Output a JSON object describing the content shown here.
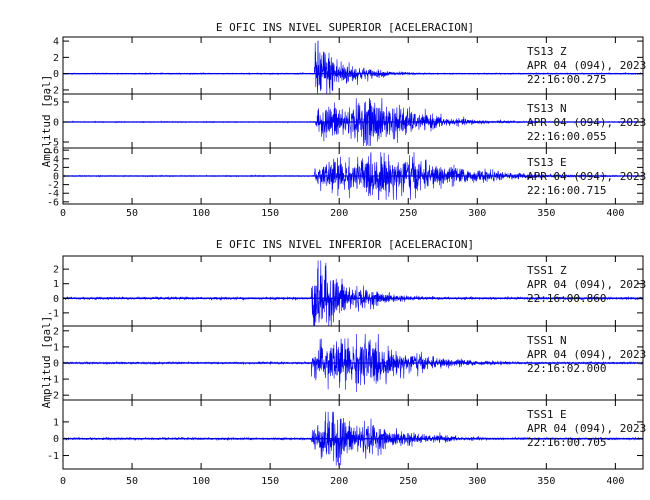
{
  "chart_data": [
    {
      "type": "line",
      "title": "E OFIC INS NIVEL SUPERIOR [ACELERACION]",
      "ylabel": "Amplitud  [gal]",
      "xlim": [
        0,
        420
      ],
      "xticks": [
        "0",
        "50",
        "100",
        "150",
        "200",
        "250",
        "300",
        "350",
        "400"
      ],
      "x_values": [
        0,
        50,
        100,
        150,
        200,
        250,
        300,
        350,
        400
      ],
      "channels": [
        {
          "station": "TS13",
          "component": "Z",
          "date": "APR 04 (094), 2023",
          "time": "22:16:00.275",
          "ylim": [
            -2.5,
            4.5
          ],
          "yticks": [
            "4",
            "2",
            "0",
            "-2"
          ],
          "ytick_values": [
            4,
            2,
            0,
            -2
          ],
          "onset": 182,
          "peak": 4.0,
          "decay": 20,
          "env_peak_sec": 183,
          "beat_period": 0,
          "noise": 0.03
        },
        {
          "station": "TS13",
          "component": "N",
          "date": "APR 04 (094), 2023",
          "time": "22:16:00.055",
          "ylim": [
            -6.5,
            7
          ],
          "yticks": [
            "5",
            "0",
            "-5"
          ],
          "ytick_values": [
            5,
            0,
            -5
          ],
          "onset": 183,
          "peak": 6.0,
          "decay": 30,
          "env_peak_sec": 230,
          "beat_period": 25,
          "noise": 0.05
        },
        {
          "station": "TS13",
          "component": "E",
          "date": "APR 04 (094), 2023",
          "time": "22:16:00.715",
          "ylim": [
            -6.5,
            6.5
          ],
          "yticks": [
            "6",
            "4",
            "2",
            "0",
            "-2",
            "-4",
            "-6"
          ],
          "ytick_values": [
            6,
            4,
            2,
            0,
            -2,
            -4,
            -6
          ],
          "onset": 182,
          "peak": 5.5,
          "decay": 45,
          "env_peak_sec": 240,
          "beat_period": 28,
          "noise": 0.05
        }
      ]
    },
    {
      "type": "line",
      "title": "E OFIC INS NIVEL INFERIOR [ACELERACION]",
      "ylabel": "Amplitud  [gal]",
      "xlim": [
        0,
        420
      ],
      "xticks": [
        "0",
        "50",
        "100",
        "150",
        "200",
        "250",
        "300",
        "350",
        "400"
      ],
      "x_values": [
        0,
        50,
        100,
        150,
        200,
        250,
        300,
        350,
        400
      ],
      "channels": [
        {
          "station": "TSS1",
          "component": "Z",
          "date": "APR 04 (094), 2023",
          "time": "22:16:00.860",
          "ylim": [
            -1.9,
            2.9
          ],
          "yticks": [
            "2",
            "1",
            "0",
            "-1"
          ],
          "ytick_values": [
            2,
            1,
            0,
            -1
          ],
          "onset": 180,
          "peak": 2.6,
          "decay": 25,
          "env_peak_sec": 181,
          "beat_period": 0,
          "noise": 0.04
        },
        {
          "station": "TSS1",
          "component": "N",
          "date": "APR 04 (094), 2023",
          "time": "22:16:02.000",
          "ylim": [
            -2.3,
            2.3
          ],
          "yticks": [
            "2",
            "1",
            "0",
            "-1",
            "-2"
          ],
          "ytick_values": [
            2,
            1,
            0,
            -1,
            -2
          ],
          "onset": 180,
          "peak": 1.8,
          "decay": 35,
          "env_peak_sec": 215,
          "beat_period": 30,
          "noise": 0.03
        },
        {
          "station": "TSS1",
          "component": "E",
          "date": "APR 04 (094), 2023",
          "time": "22:16:00.705",
          "ylim": [
            -1.8,
            2.3
          ],
          "yticks": [
            "1",
            "0",
            "-1"
          ],
          "ytick_values": [
            1,
            0,
            -1
          ],
          "onset": 180,
          "peak": 1.6,
          "decay": 35,
          "env_peak_sec": 200,
          "beat_period": 28,
          "noise": 0.03
        }
      ]
    }
  ],
  "colors": {
    "trace": "#0000ee",
    "axes": "#000000",
    "text": "#111111"
  }
}
